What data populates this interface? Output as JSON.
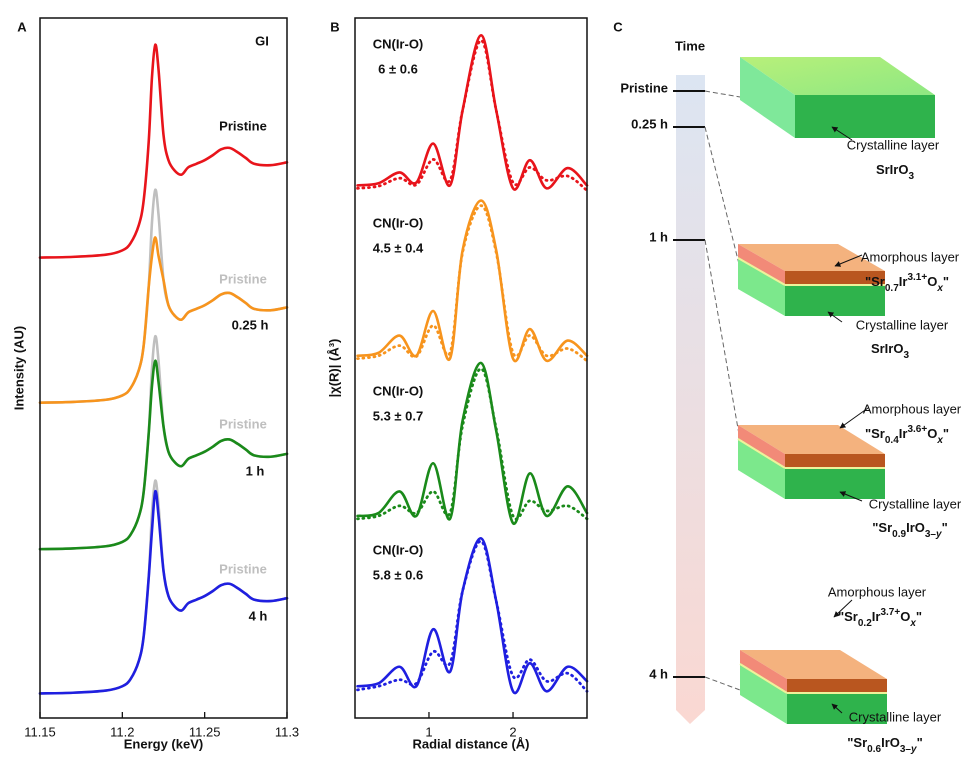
{
  "chart_data": [
    {
      "type": "line",
      "panel_label": "A",
      "annotation": "GI",
      "xlabel": "Energy (keV)",
      "ylabel": "Intensity (AU)",
      "xlim": [
        11.15,
        11.3
      ],
      "xticks": [
        11.15,
        11.2,
        11.25,
        11.3
      ],
      "ylim": [
        0.3,
        10
      ],
      "x": [
        11.15,
        11.17,
        11.19,
        11.2,
        11.205,
        11.21,
        11.213,
        11.216,
        11.218,
        11.22,
        11.222,
        11.225,
        11.228,
        11.232,
        11.236,
        11.24,
        11.245,
        11.25,
        11.255,
        11.26,
        11.265,
        11.27,
        11.275,
        11.28,
        11.29,
        11.3
      ],
      "series": [
        {
          "name": "Pristine",
          "color": "#bfbfbf",
          "values": [
            4.67,
            4.68,
            4.71,
            4.77,
            4.87,
            5.12,
            5.47,
            6.27,
            7.17,
            7.62,
            7.27,
            6.37,
            6.02,
            5.87,
            5.82,
            5.92,
            5.97,
            6.02,
            6.09,
            6.17,
            6.19,
            6.13,
            6.05,
            5.97,
            5.95,
            5.99
          ]
        },
        {
          "name": "Pristine",
          "color": "#bfbfbf",
          "values": [
            2.64,
            2.65,
            2.68,
            2.74,
            2.84,
            3.09,
            3.44,
            4.24,
            5.14,
            5.59,
            5.24,
            4.34,
            3.99,
            3.84,
            3.79,
            3.89,
            3.94,
            3.99,
            4.06,
            4.14,
            4.16,
            4.1,
            4.02,
            3.94,
            3.92,
            3.96
          ]
        },
        {
          "name": "Pristine",
          "color": "#bfbfbf",
          "values": [
            0.64,
            0.65,
            0.68,
            0.74,
            0.84,
            1.09,
            1.44,
            2.24,
            3.14,
            3.59,
            3.24,
            2.34,
            1.99,
            1.84,
            1.79,
            1.89,
            1.94,
            1.99,
            2.06,
            2.14,
            2.16,
            2.1,
            2.02,
            1.94,
            1.92,
            1.96
          ]
        },
        {
          "name": "Pristine",
          "color": "#e8141b",
          "values": [
            6.68,
            6.69,
            6.72,
            6.78,
            6.88,
            7.13,
            7.48,
            8.28,
            9.18,
            9.63,
            9.28,
            8.38,
            8.03,
            7.88,
            7.83,
            7.93,
            7.98,
            8.03,
            8.1,
            8.18,
            8.2,
            8.14,
            8.06,
            7.98,
            7.96,
            8.0
          ]
        },
        {
          "name": "0.25 h",
          "color": "#f7941d",
          "values": [
            4.67,
            4.68,
            4.71,
            4.77,
            4.87,
            5.12,
            5.47,
            6.27,
            6.7,
            6.96,
            6.7,
            6.37,
            6.02,
            5.87,
            5.82,
            5.92,
            5.97,
            6.02,
            6.09,
            6.17,
            6.19,
            6.13,
            6.05,
            5.97,
            5.95,
            5.99
          ]
        },
        {
          "name": "1 h",
          "color": "#1a8a1a",
          "values": [
            2.64,
            2.65,
            2.68,
            2.74,
            2.84,
            3.09,
            3.44,
            4.24,
            4.9,
            5.25,
            4.95,
            4.34,
            3.99,
            3.84,
            3.79,
            3.89,
            3.94,
            3.99,
            4.06,
            4.14,
            4.16,
            4.1,
            4.02,
            3.94,
            3.92,
            3.96
          ]
        },
        {
          "name": "4 h",
          "color": "#1f1fe0",
          "values": [
            0.64,
            0.65,
            0.68,
            0.74,
            0.84,
            1.09,
            1.44,
            2.24,
            2.9,
            3.44,
            3.1,
            2.34,
            1.99,
            1.84,
            1.79,
            1.89,
            1.94,
            1.99,
            2.06,
            2.14,
            2.16,
            2.1,
            2.02,
            1.94,
            1.92,
            1.96
          ]
        }
      ]
    },
    {
      "type": "line",
      "panel_label": "B",
      "xlabel": "Radial distance (Å)",
      "ylabel": "|χ(R)| (Å³)",
      "xlim": [
        0.12,
        2.88
      ],
      "xticks": [
        1,
        2
      ],
      "ylim": [
        0.3,
        10
      ],
      "x": [
        0.15,
        0.4,
        0.65,
        0.85,
        1.05,
        1.25,
        1.4,
        1.62,
        1.8,
        2.0,
        2.2,
        2.4,
        2.65,
        2.88
      ],
      "annotations": [
        {
          "label": "CN(Ir-O)",
          "value": "6 ± 0.6"
        },
        {
          "label": "CN(Ir-O)",
          "value": "4.5 ± 0.4"
        },
        {
          "label": "CN(Ir-O)",
          "value": "5.3 ± 0.7"
        },
        {
          "label": "CN(Ir-O)",
          "value": "5.8 ± 0.6"
        }
      ],
      "series": [
        {
          "color": "#e8141b",
          "line_style": "dotted",
          "values": [
            7.64,
            7.67,
            7.78,
            7.69,
            8.04,
            7.75,
            8.72,
            9.69,
            8.72,
            7.72,
            7.93,
            7.75,
            7.81,
            7.61
          ]
        },
        {
          "color": "#e8141b",
          "line_style": "solid",
          "values": [
            7.68,
            7.71,
            7.86,
            7.72,
            8.26,
            7.68,
            8.72,
            9.76,
            8.72,
            7.64,
            8.03,
            7.64,
            7.92,
            7.68
          ]
        },
        {
          "color": "#f7941d",
          "line_style": "dotted",
          "values": [
            5.28,
            5.32,
            5.46,
            5.31,
            5.74,
            5.36,
            6.75,
            7.4,
            6.75,
            5.36,
            5.6,
            5.32,
            5.42,
            5.25
          ]
        },
        {
          "color": "#f7941d",
          "line_style": "solid",
          "values": [
            5.32,
            5.36,
            5.6,
            5.32,
            5.94,
            5.28,
            6.78,
            7.47,
            6.78,
            5.28,
            5.69,
            5.25,
            5.53,
            5.32
          ]
        },
        {
          "color": "#1a8a1a",
          "line_style": "dotted",
          "values": [
            3.06,
            3.1,
            3.24,
            3.14,
            3.44,
            3.14,
            4.35,
            5.14,
            4.31,
            3.1,
            3.31,
            3.17,
            3.24,
            3.06
          ]
        },
        {
          "color": "#1a8a1a",
          "line_style": "solid",
          "values": [
            3.1,
            3.14,
            3.44,
            3.1,
            3.83,
            3.06,
            4.42,
            5.22,
            4.28,
            3.0,
            3.69,
            3.1,
            3.51,
            3.14
          ]
        },
        {
          "color": "#1f1fe0",
          "line_style": "dotted",
          "values": [
            0.69,
            0.74,
            0.83,
            0.78,
            1.22,
            1.06,
            2.06,
            2.75,
            1.92,
            0.88,
            1.11,
            0.81,
            0.92,
            0.67
          ]
        },
        {
          "color": "#1f1fe0",
          "line_style": "solid",
          "values": [
            0.74,
            0.78,
            1.01,
            0.74,
            1.53,
            0.94,
            2.06,
            2.79,
            1.92,
            0.67,
            1.06,
            0.67,
            1.01,
            0.81
          ]
        }
      ]
    }
  ],
  "diagram": {
    "panel_label": "C",
    "title": "Time",
    "markers": [
      "Pristine",
      "0.25 h",
      "1 h",
      "4 h"
    ],
    "blocks": [
      {
        "crystalline": {
          "label": "Crystalline layer",
          "formula": [
            {
              "text": "SrIrO"
            },
            {
              "text": "3",
              "style": "sub"
            }
          ]
        }
      },
      {
        "amorphous": {
          "label": "Amorphous layer",
          "formula": [
            {
              "text": "\"Sr"
            },
            {
              "text": "0.7",
              "style": "sub"
            },
            {
              "text": "Ir"
            },
            {
              "text": "3.1+",
              "style": "sup"
            },
            {
              "text": "O"
            },
            {
              "text": "x",
              "style": "sub-italic"
            },
            {
              "text": "\""
            }
          ]
        },
        "crystalline": {
          "label": "Crystalline layer",
          "formula": [
            {
              "text": "SrIrO"
            },
            {
              "text": "3",
              "style": "sub"
            }
          ]
        }
      },
      {
        "amorphous": {
          "label": "Amorphous layer",
          "formula": [
            {
              "text": "\"Sr"
            },
            {
              "text": "0.4",
              "style": "sub"
            },
            {
              "text": "Ir"
            },
            {
              "text": "3.6+",
              "style": "sup"
            },
            {
              "text": "O"
            },
            {
              "text": "x",
              "style": "sub-italic"
            },
            {
              "text": "\""
            }
          ]
        },
        "crystalline": {
          "label": "Crystalline layer",
          "formula": [
            {
              "text": "\"Sr"
            },
            {
              "text": "0.9",
              "style": "sub"
            },
            {
              "text": "IrO"
            },
            {
              "text": "3–",
              "style": "sub"
            },
            {
              "text": "y",
              "style": "sub-italic"
            },
            {
              "text": "\""
            }
          ]
        }
      },
      {
        "amorphous": {
          "label": "Amorphous layer",
          "formula": [
            {
              "text": "\"Sr"
            },
            {
              "text": "0.2",
              "style": "sub"
            },
            {
              "text": "Ir"
            },
            {
              "text": "3.7+",
              "style": "sup"
            },
            {
              "text": "O"
            },
            {
              "text": "x",
              "style": "sub-italic"
            },
            {
              "text": "\""
            }
          ]
        },
        "crystalline": {
          "label": "Crystalline layer",
          "formula": [
            {
              "text": "\"Sr"
            },
            {
              "text": "0.6",
              "style": "sub"
            },
            {
              "text": "IrO"
            },
            {
              "text": "3–",
              "style": "sub"
            },
            {
              "text": "y",
              "style": "sub-italic"
            },
            {
              "text": "\""
            }
          ]
        }
      }
    ]
  }
}
